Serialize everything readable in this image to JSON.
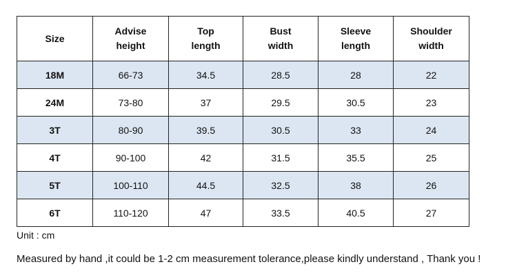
{
  "table": {
    "header": [
      "Size",
      "Advise\nheight",
      "Top\nlength",
      "Bust\nwidth",
      "Sleeve\nlength",
      "Shoulder\nwidth"
    ],
    "rows": [
      [
        "18M",
        "66-73",
        "34.5",
        "28.5",
        "28",
        "22"
      ],
      [
        "24M",
        "73-80",
        "37",
        "29.5",
        "30.5",
        "23"
      ],
      [
        "3T",
        "80-90",
        "39.5",
        "30.5",
        "33",
        "24"
      ],
      [
        "4T",
        "90-100",
        "42",
        "31.5",
        "35.5",
        "25"
      ],
      [
        "5T",
        "100-110",
        "44.5",
        "32.5",
        "38",
        "26"
      ],
      [
        "6T",
        "110-120",
        "47",
        "33.5",
        "40.5",
        "27"
      ]
    ]
  },
  "notes": [
    "Unit : cm",
    "Measured by hand ,it could be 1-2 cm measurement tolerance,please kindly understand , Thank you !"
  ]
}
